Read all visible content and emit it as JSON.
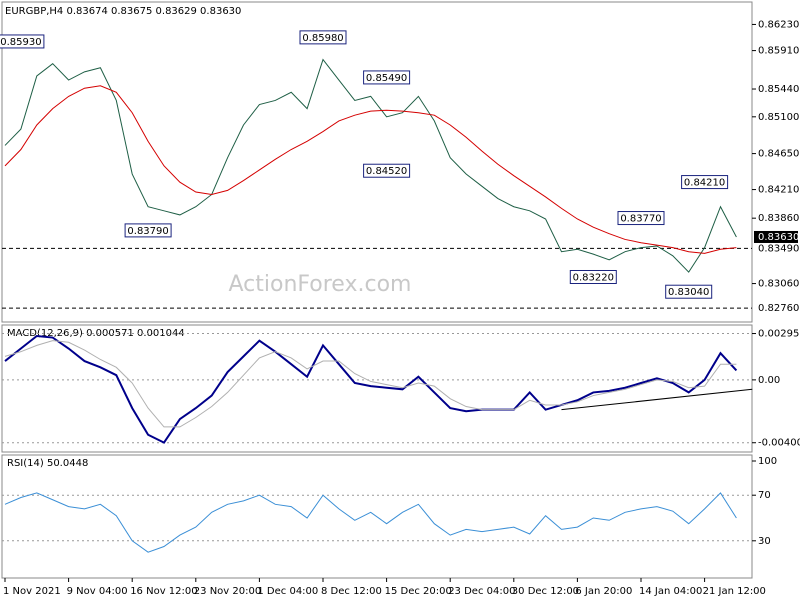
{
  "watermark": "ActionForex.com",
  "chart_data": [
    {
      "type": "line",
      "title": "EURGBP,H4  0.83674 0.83675 0.83629 0.83630",
      "ylim": [
        0.8259,
        0.8648
      ],
      "yticks": [
        {
          "value": 0.8623,
          "label": "0.86230"
        },
        {
          "value": 0.8591,
          "label": "0.85910"
        },
        {
          "value": 0.8544,
          "label": "0.85440"
        },
        {
          "value": 0.851,
          "label": "0.85100"
        },
        {
          "value": 0.8465,
          "label": "0.84650"
        },
        {
          "value": 0.8421,
          "label": "0.84210"
        },
        {
          "value": 0.8386,
          "label": "0.83860"
        },
        {
          "value": 0.8306,
          "label": "0.83060"
        }
      ],
      "levels": [
        {
          "value": 0.8349,
          "label": "0.83490"
        },
        {
          "value": 0.8276,
          "label": "0.82760"
        }
      ],
      "current_price": {
        "value": 0.8363,
        "label": "0.83630"
      },
      "series": [
        {
          "name": "EURGBP",
          "color": "#1f5f46",
          "values": [
            0.8475,
            0.8495,
            0.856,
            0.8575,
            0.8555,
            0.8565,
            0.857,
            0.853,
            0.844,
            0.84,
            0.8395,
            0.839,
            0.84,
            0.8415,
            0.846,
            0.85,
            0.8525,
            0.853,
            0.854,
            0.852,
            0.858,
            0.8555,
            0.853,
            0.8535,
            0.851,
            0.8515,
            0.8535,
            0.8505,
            0.846,
            0.844,
            0.8425,
            0.841,
            0.84,
            0.8395,
            0.8385,
            0.8345,
            0.8348,
            0.8342,
            0.8335,
            0.8345,
            0.835,
            0.8352,
            0.834,
            0.832,
            0.835,
            0.84,
            0.8363
          ]
        },
        {
          "name": "MA",
          "color": "#d40000",
          "values": [
            0.845,
            0.847,
            0.85,
            0.852,
            0.8535,
            0.8545,
            0.8548,
            0.854,
            0.8515,
            0.848,
            0.845,
            0.843,
            0.8418,
            0.8415,
            0.842,
            0.8432,
            0.8445,
            0.8458,
            0.847,
            0.848,
            0.8492,
            0.8505,
            0.8512,
            0.8517,
            0.8518,
            0.8517,
            0.8515,
            0.8512,
            0.85,
            0.8485,
            0.8468,
            0.8452,
            0.8438,
            0.8425,
            0.8412,
            0.8398,
            0.8385,
            0.8375,
            0.8367,
            0.836,
            0.8356,
            0.8353,
            0.835,
            0.8345,
            0.8343,
            0.8348,
            0.835
          ]
        }
      ],
      "annotations": [
        {
          "x": 1,
          "value": 0.8593,
          "label": "0.85930"
        },
        {
          "x": 20,
          "value": 0.8598,
          "label": "0.85980"
        },
        {
          "x": 24,
          "value": 0.8549,
          "label": "0.85490"
        },
        {
          "x": 24,
          "value": 0.8452,
          "label": "0.84520"
        },
        {
          "x": 9,
          "value": 0.8379,
          "label": "0.83790"
        },
        {
          "x": 37,
          "value": 0.8322,
          "label": "0.83220"
        },
        {
          "x": 40,
          "value": 0.8377,
          "label": "0.83770"
        },
        {
          "x": 43,
          "value": 0.8304,
          "label": "0.83040"
        },
        {
          "x": 44,
          "value": 0.8421,
          "label": "0.84210"
        }
      ]
    },
    {
      "type": "line",
      "title": "MACD(12,26,9) 0.000571 0.001044",
      "ylim": [
        -0.0046,
        0.0035
      ],
      "yticks": [
        0.002955,
        {
          "value": 0,
          "label": "0.00"
        },
        -0.004009
      ],
      "series": [
        {
          "name": "MACD",
          "color": "#00008b",
          "values": [
            0.0012,
            0.002,
            0.0028,
            0.0027,
            0.002,
            0.0012,
            0.0008,
            0.0003,
            -0.0018,
            -0.0035,
            -0.004,
            -0.0025,
            -0.0018,
            -0.001,
            0.0005,
            0.0015,
            0.0025,
            0.0018,
            0.001,
            0.0002,
            0.0022,
            0.001,
            -0.0002,
            -0.0004,
            -0.0005,
            -0.0006,
            0.0002,
            -0.0008,
            -0.0018,
            -0.002,
            -0.0019,
            -0.0019,
            -0.0019,
            -0.0008,
            -0.0019,
            -0.0016,
            -0.0013,
            -0.0008,
            -0.0007,
            -0.0005,
            -0.0002,
            0.0001,
            -0.0002,
            -0.0008,
            0,
            0.0017,
            0.0006
          ]
        },
        {
          "name": "Signal",
          "color": "#b0b0b0",
          "values": [
            0.0015,
            0.0018,
            0.0022,
            0.0025,
            0.0024,
            0.0019,
            0.0013,
            0.0008,
            -0.0002,
            -0.0018,
            -0.003,
            -0.003,
            -0.0024,
            -0.0017,
            -0.0008,
            0.0003,
            0.0014,
            0.0018,
            0.0014,
            0.0007,
            0.0012,
            0.0012,
            0.0004,
            -0.0001,
            -0.0003,
            -0.0005,
            -0.0002,
            -0.0004,
            -0.0012,
            -0.0017,
            -0.0019,
            -0.0019,
            -0.0019,
            -0.0013,
            -0.0016,
            -0.0016,
            -0.0014,
            -0.001,
            -0.0008,
            -0.0006,
            -0.0003,
            0,
            -0.0001,
            -0.0005,
            -0.0004,
            0.001,
            0.001
          ]
        }
      ],
      "trendline": {
        "x": [
          35,
          47
        ],
        "values": [
          -0.0019,
          -0.0006
        ]
      }
    },
    {
      "type": "line",
      "title": "RSI(14) 50.0448",
      "ylim": [
        0,
        100
      ],
      "yticks": [
        100,
        70,
        30
      ],
      "categories": [
        "1 Nov 2021",
        null,
        null,
        null,
        "9 Nov 04:00",
        null,
        null,
        null,
        "16 Nov 12:00",
        null,
        null,
        null,
        "23 Nov 20:00",
        null,
        null,
        null,
        "1 Dec 04:00",
        null,
        null,
        null,
        "8 Dec 12:00",
        null,
        null,
        null,
        "15 Dec 20:00",
        null,
        null,
        null,
        "23 Dec 04:00",
        null,
        null,
        null,
        "30 Dec 12:00",
        null,
        null,
        null,
        "6 Jan 20:00",
        null,
        null,
        null,
        "14 Jan 04:00",
        null,
        null,
        null,
        "21 Jan 12:00",
        null,
        null
      ],
      "series": [
        {
          "name": "RSI",
          "color": "#3b8fd6",
          "values": [
            62,
            68,
            72,
            66,
            60,
            58,
            62,
            52,
            30,
            20,
            25,
            35,
            42,
            55,
            62,
            65,
            70,
            62,
            60,
            50,
            70,
            58,
            48,
            55,
            45,
            55,
            62,
            45,
            35,
            40,
            38,
            40,
            42,
            36,
            52,
            40,
            42,
            50,
            48,
            55,
            58,
            60,
            56,
            45,
            58,
            72,
            50
          ]
        }
      ]
    }
  ]
}
